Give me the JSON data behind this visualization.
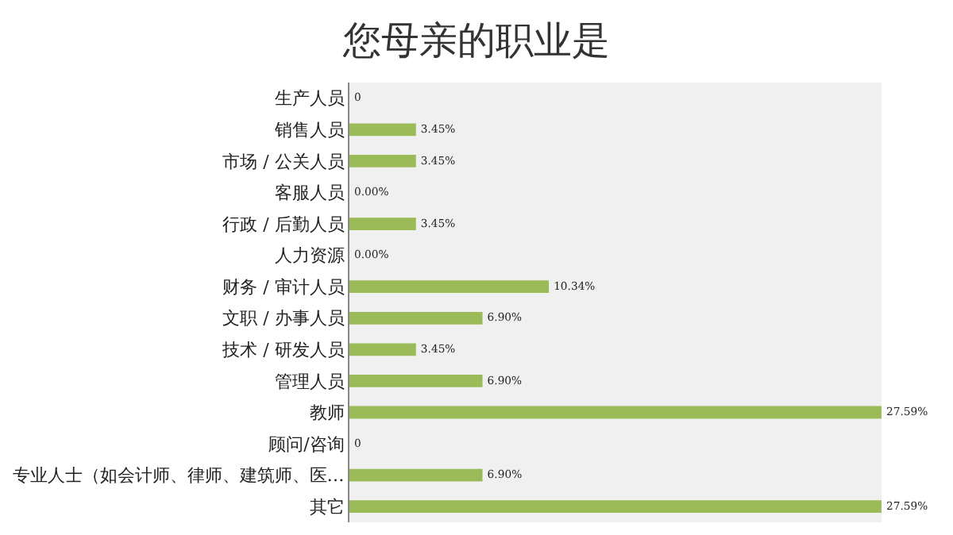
{
  "chart_data": {
    "type": "bar",
    "orientation": "horizontal",
    "title": "您母亲的职业是",
    "categories": [
      "生产人员",
      "销售人员",
      "市场 / 公关人员",
      "客服人员",
      "行政 / 后勤人员",
      "人力资源",
      "财务 / 审计人员",
      "文职 / 办事人员",
      "技术 / 研发人员",
      "管理人员",
      "教师",
      "顾问/咨询",
      "专业人士（如会计师、律师、建筑师、医…",
      "其它"
    ],
    "values": [
      0,
      3.45,
      3.45,
      0,
      3.45,
      0,
      10.34,
      6.9,
      3.45,
      6.9,
      27.59,
      0,
      6.9,
      27.59
    ],
    "value_labels": [
      "0",
      "3.45%",
      "3.45%",
      "0.00%",
      "3.45%",
      "0.00%",
      "10.34%",
      "6.90%",
      "3.45%",
      "6.90%",
      "27.59%",
      "0",
      "6.90%",
      "27.59%"
    ],
    "color": "#9bbb59",
    "grid": false,
    "legend": false
  }
}
